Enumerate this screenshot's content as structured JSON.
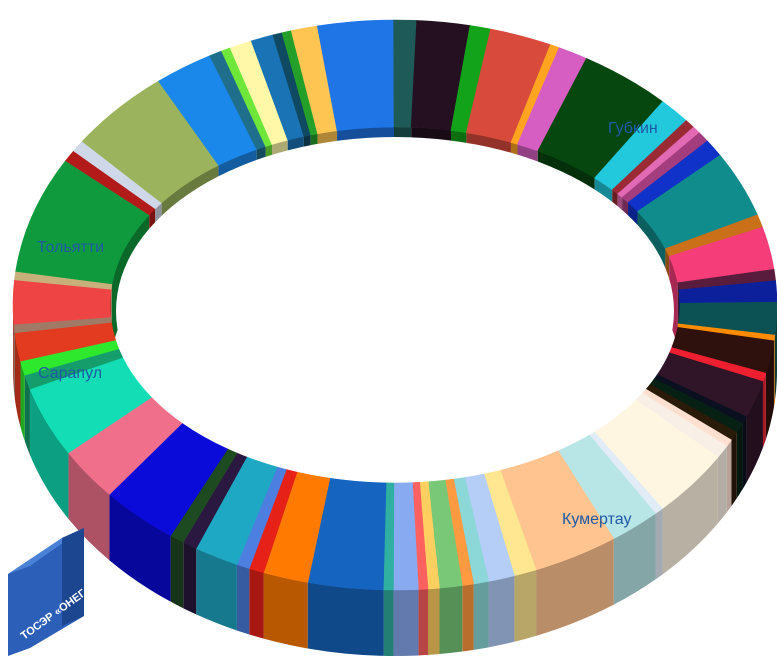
{
  "chart_data": {
    "type": "pie",
    "style": "3d-donut",
    "title": "",
    "legend": "none",
    "labels": {
      "tolyatti": "Тольятти",
      "sarapul": "Сарапул",
      "gubkin": "Губкин",
      "kumertau": "Кумертау"
    },
    "badge": "ТОСЭР «ОНЕГА»",
    "slices": [
      {
        "value": 4.0,
        "color": "#1565c0"
      },
      {
        "value": 2.4,
        "color": "#ff7a00"
      },
      {
        "value": 0.8,
        "color": "#e62117"
      },
      {
        "value": 0.7,
        "color": "#4d7fe0"
      },
      {
        "value": 2.4,
        "color": "#1ea8c4"
      },
      {
        "value": 0.8,
        "color": "#2a1840"
      },
      {
        "value": 0.8,
        "color": "#1e4a22"
      },
      {
        "value": 4.3,
        "color": "#0a0ad9"
      },
      {
        "value": 3.6,
        "color": "#f0708c"
      },
      {
        "value": 4.9,
        "color": "#12ddb5"
      },
      {
        "value": 1.0,
        "color": "#159e6c"
      },
      {
        "value": 1.0,
        "color": "#2ee82e"
      },
      {
        "value": 2.0,
        "color": "#e33b1f"
      },
      {
        "value": 0.6,
        "color": "#a07a66"
      },
      {
        "value": 3.1,
        "color": "#ef4444"
      },
      {
        "value": 0.6,
        "color": "#c7b07a"
      },
      {
        "value": 8.2,
        "color": "#0f9b3d",
        "label": "tolyatti"
      },
      {
        "value": 0.8,
        "color": "#b31b1b"
      },
      {
        "value": 0.8,
        "color": "#cfd8e8"
      },
      {
        "value": 5.8,
        "color": "#9bb35c",
        "label": "sarapul"
      },
      {
        "value": 3.2,
        "color": "#1a88ea"
      },
      {
        "value": 0.7,
        "color": "#1f6e8c"
      },
      {
        "value": 0.5,
        "color": "#6ee63a"
      },
      {
        "value": 1.2,
        "color": "#fff8a8"
      },
      {
        "value": 1.2,
        "color": "#1973b5"
      },
      {
        "value": 0.5,
        "color": "#104a62"
      },
      {
        "value": 0.5,
        "color": "#24a02a"
      },
      {
        "value": 1.4,
        "color": "#ffc552"
      },
      {
        "value": 4.0,
        "color": "#1f74e6"
      },
      {
        "value": 1.2,
        "color": "#1e5a57"
      },
      {
        "value": 2.8,
        "color": "#241021"
      },
      {
        "value": 1.1,
        "color": "#13a31b"
      },
      {
        "value": 3.3,
        "color": "#d74a3c"
      },
      {
        "value": 0.5,
        "color": "#ffa420"
      },
      {
        "value": 1.6,
        "color": "#d65ec2"
      },
      {
        "value": 5.0,
        "color": "#05470e"
      },
      {
        "value": 1.8,
        "color": "#22c8dc"
      },
      {
        "value": 0.6,
        "color": "#9a2b34"
      },
      {
        "value": 0.5,
        "color": "#e26ab5"
      },
      {
        "value": 0.7,
        "color": "#a43d7d"
      },
      {
        "value": 1.2,
        "color": "#1032c8"
      },
      {
        "value": 4.6,
        "color": "#108c8c",
        "label": "kumertau"
      },
      {
        "value": 0.9,
        "color": "#c97018"
      },
      {
        "value": 3.0,
        "color": "#f53d7a"
      },
      {
        "value": 0.8,
        "color": "#5a1c3c"
      },
      {
        "value": 1.5,
        "color": "#0c209c"
      },
      {
        "value": 2.3,
        "color": "#0c5255"
      },
      {
        "value": 0.4,
        "color": "#ff8c00"
      },
      {
        "value": 2.3,
        "color": "#2e100c"
      },
      {
        "value": 0.6,
        "color": "#ee2030"
      },
      {
        "value": 2.6,
        "color": "#301428"
      },
      {
        "value": 0.5,
        "color": "#0a1020"
      },
      {
        "value": 0.7,
        "color": "#062014"
      },
      {
        "value": 0.6,
        "color": "#2a1a08"
      },
      {
        "value": 0.5,
        "color": "#ffe0d0"
      },
      {
        "value": 0.9,
        "color": "#f8f0e6"
      },
      {
        "value": 4.6,
        "color": "#fff6e2"
      },
      {
        "value": 0.5,
        "color": "#e2ecf6"
      },
      {
        "value": 2.8,
        "color": "#b8e6e6"
      },
      {
        "value": 4.6,
        "color": "#ffc490",
        "label": "gubkin"
      },
      {
        "value": 1.2,
        "color": "#ffe690"
      },
      {
        "value": 1.4,
        "color": "#b4cef8"
      },
      {
        "value": 0.8,
        "color": "#8cd8d8"
      },
      {
        "value": 0.6,
        "color": "#ff9a40"
      },
      {
        "value": 1.2,
        "color": "#78c878"
      },
      {
        "value": 0.6,
        "color": "#ffd060"
      },
      {
        "value": 0.5,
        "color": "#ff6060"
      },
      {
        "value": 1.3,
        "color": "#88aaf0"
      },
      {
        "value": 0.5,
        "color": "#30b0a0"
      }
    ]
  }
}
